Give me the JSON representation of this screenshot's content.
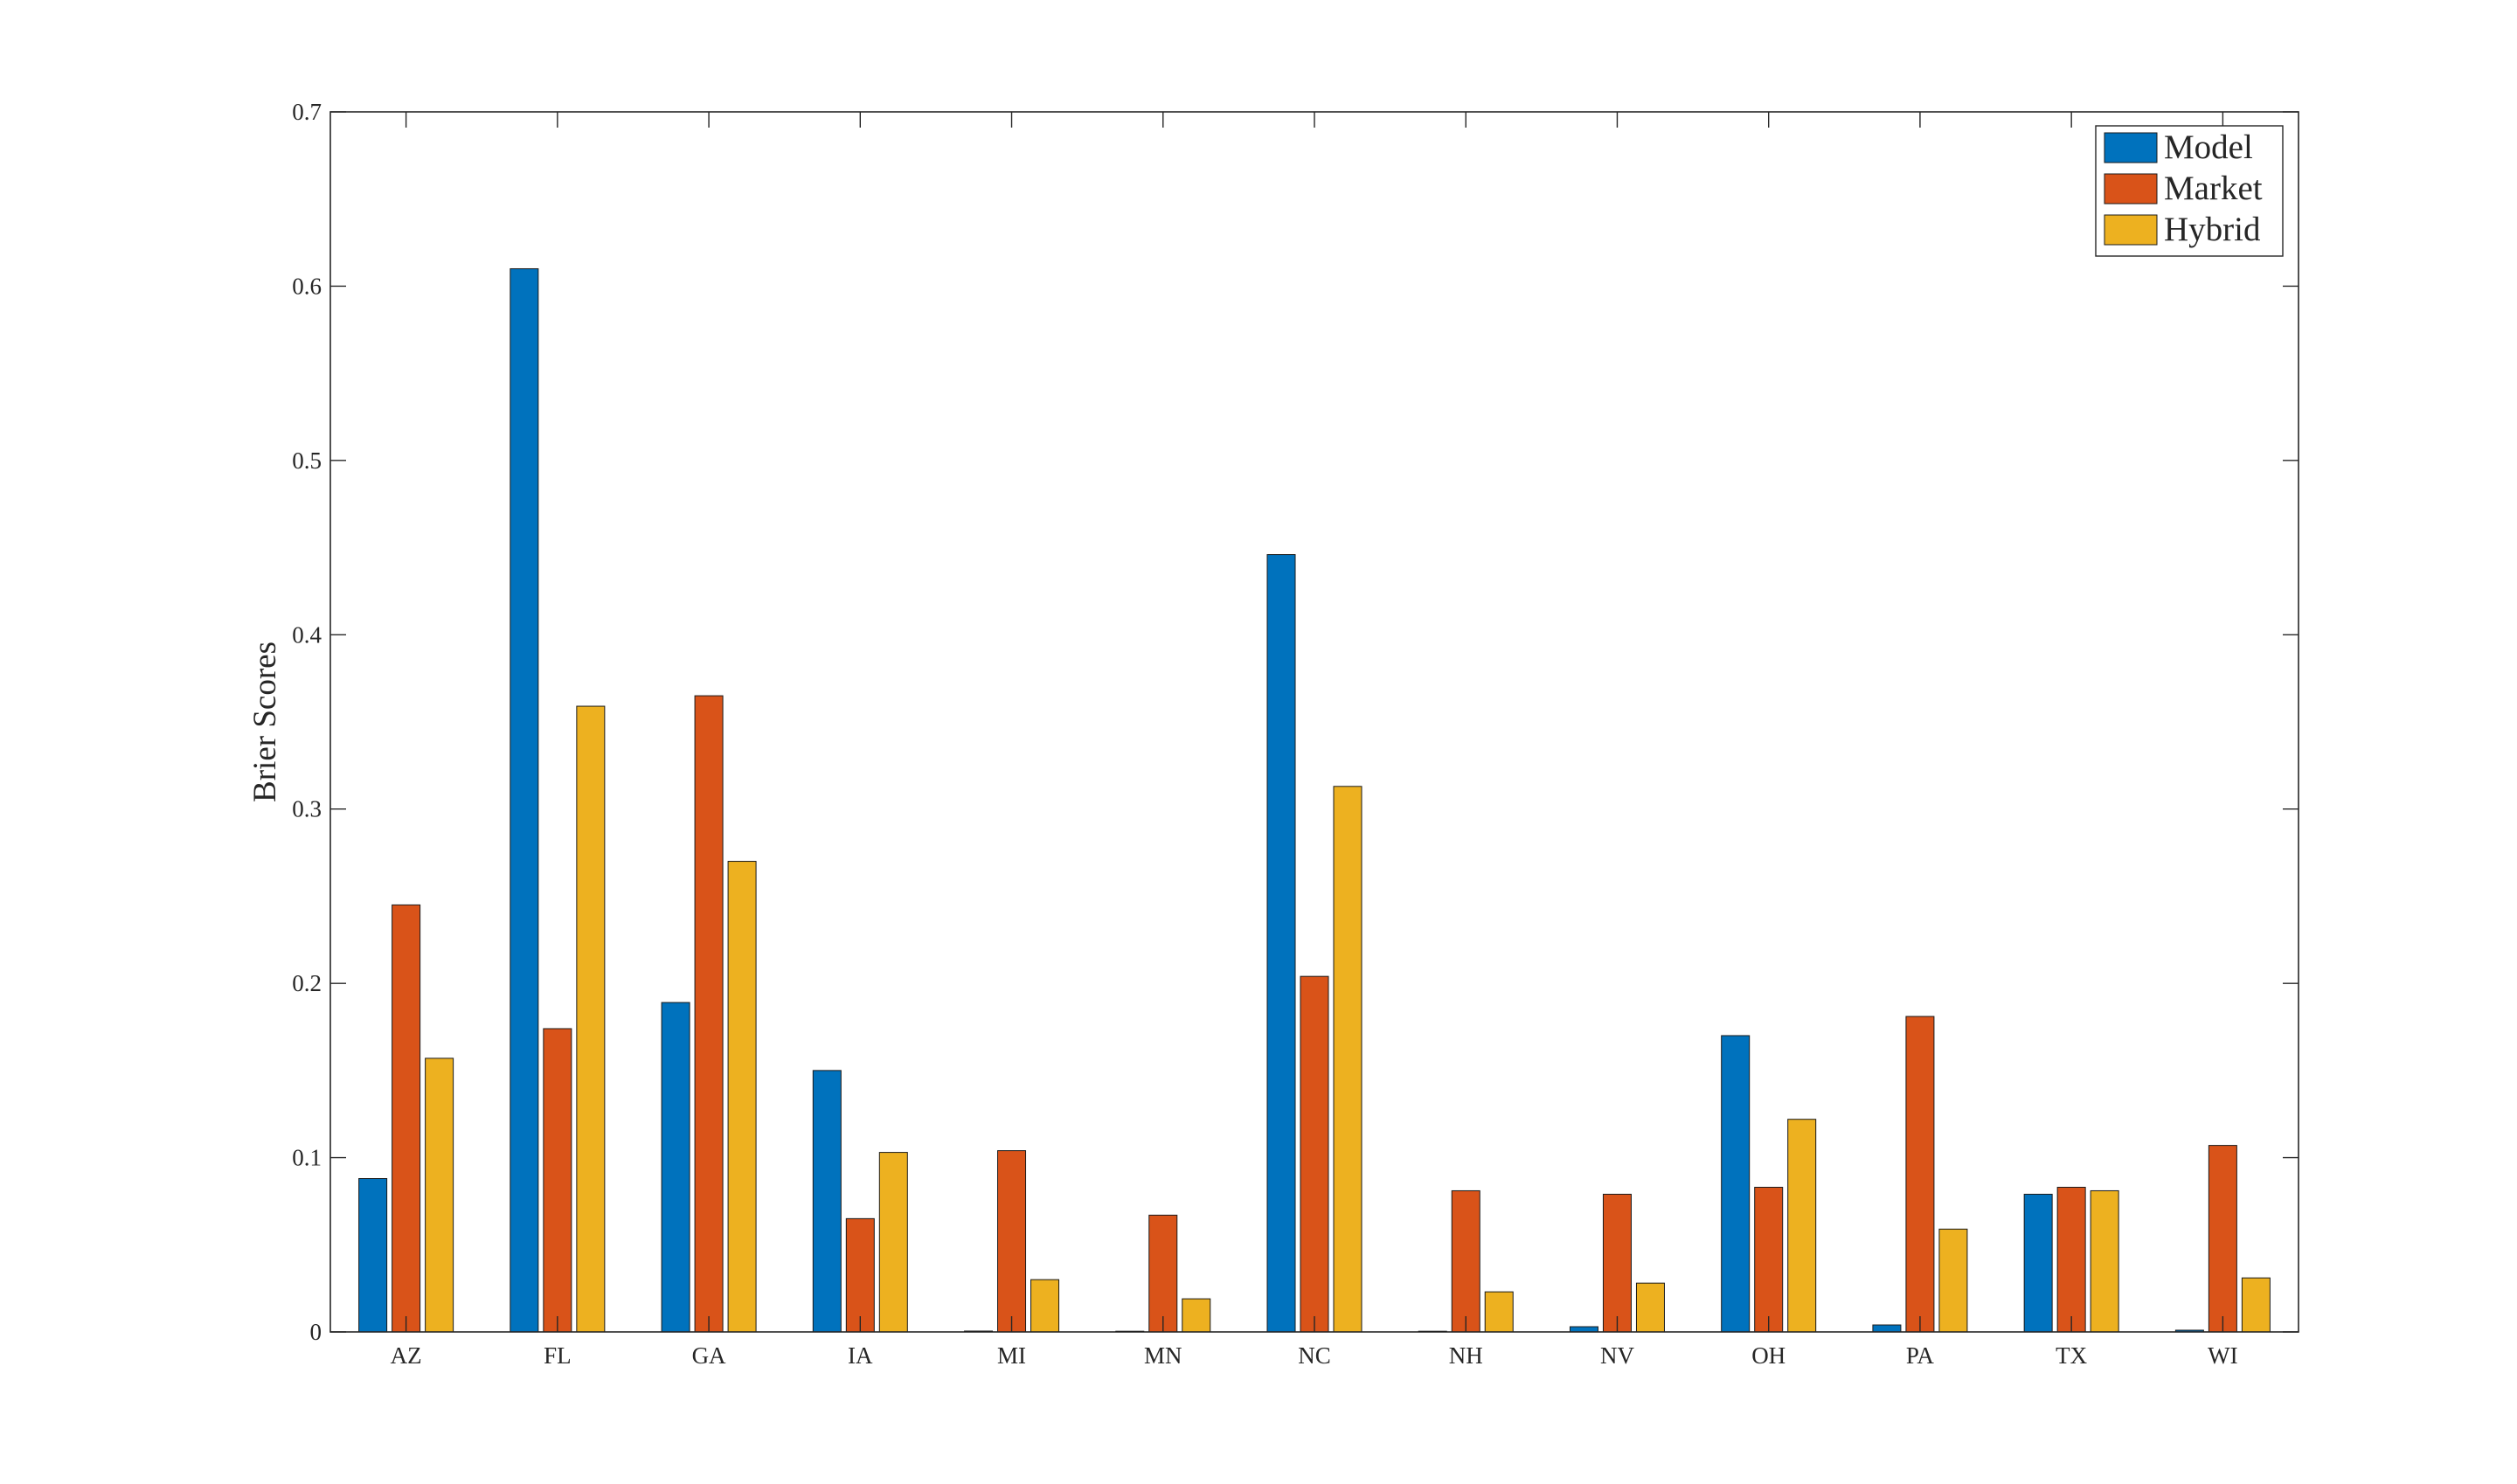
{
  "chart_data": {
    "type": "bar",
    "ylabel": "Brier Scores",
    "xlabel": "",
    "ylim": [
      0,
      0.7
    ],
    "yticks": [
      "0",
      "0.1",
      "0.2",
      "0.3",
      "0.4",
      "0.5",
      "0.6",
      "0.7"
    ],
    "categories": [
      "AZ",
      "FL",
      "GA",
      "IA",
      "MI",
      "MN",
      "NC",
      "NH",
      "NV",
      "OH",
      "PA",
      "TX",
      "WI"
    ],
    "series": [
      {
        "name": "Model",
        "color": "#0072BD",
        "values": [
          0.088,
          0.61,
          0.189,
          0.15,
          0.0005,
          0.0004,
          0.446,
          0.0004,
          0.003,
          0.17,
          0.004,
          0.079,
          0.001
        ]
      },
      {
        "name": "Market",
        "color": "#D95319",
        "values": [
          0.245,
          0.174,
          0.365,
          0.065,
          0.104,
          0.067,
          0.204,
          0.081,
          0.079,
          0.083,
          0.181,
          0.083,
          0.107
        ]
      },
      {
        "name": "Hybrid",
        "color": "#EDB120",
        "values": [
          0.157,
          0.359,
          0.27,
          0.103,
          0.03,
          0.019,
          0.313,
          0.023,
          0.028,
          0.122,
          0.059,
          0.081,
          0.031
        ]
      }
    ],
    "legend_position": "top-right",
    "grid": false
  }
}
